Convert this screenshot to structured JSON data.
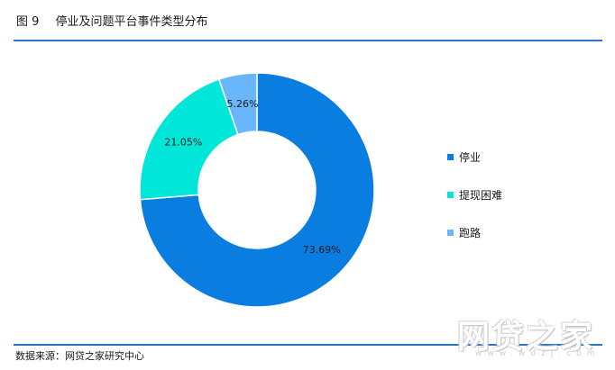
{
  "figure_label": "图 9",
  "chart_data": {
    "type": "pie",
    "variant": "donut",
    "title": "停业及问题平台事件类型分布",
    "slices": [
      {
        "name": "停业",
        "value": 73.69,
        "label": "73.69%",
        "color": "#0a7ee0"
      },
      {
        "name": "提现困难",
        "value": 21.05,
        "label": "21.05%",
        "color": "#00e6d9"
      },
      {
        "name": "跑路",
        "value": 5.26,
        "label": "5.26%",
        "color": "#6ab6fa"
      }
    ],
    "legend_position": "right"
  },
  "source": "数据来源：网贷之家研究中心",
  "watermark": {
    "text": "网贷之家",
    "sub": "www.wdzj.com"
  }
}
